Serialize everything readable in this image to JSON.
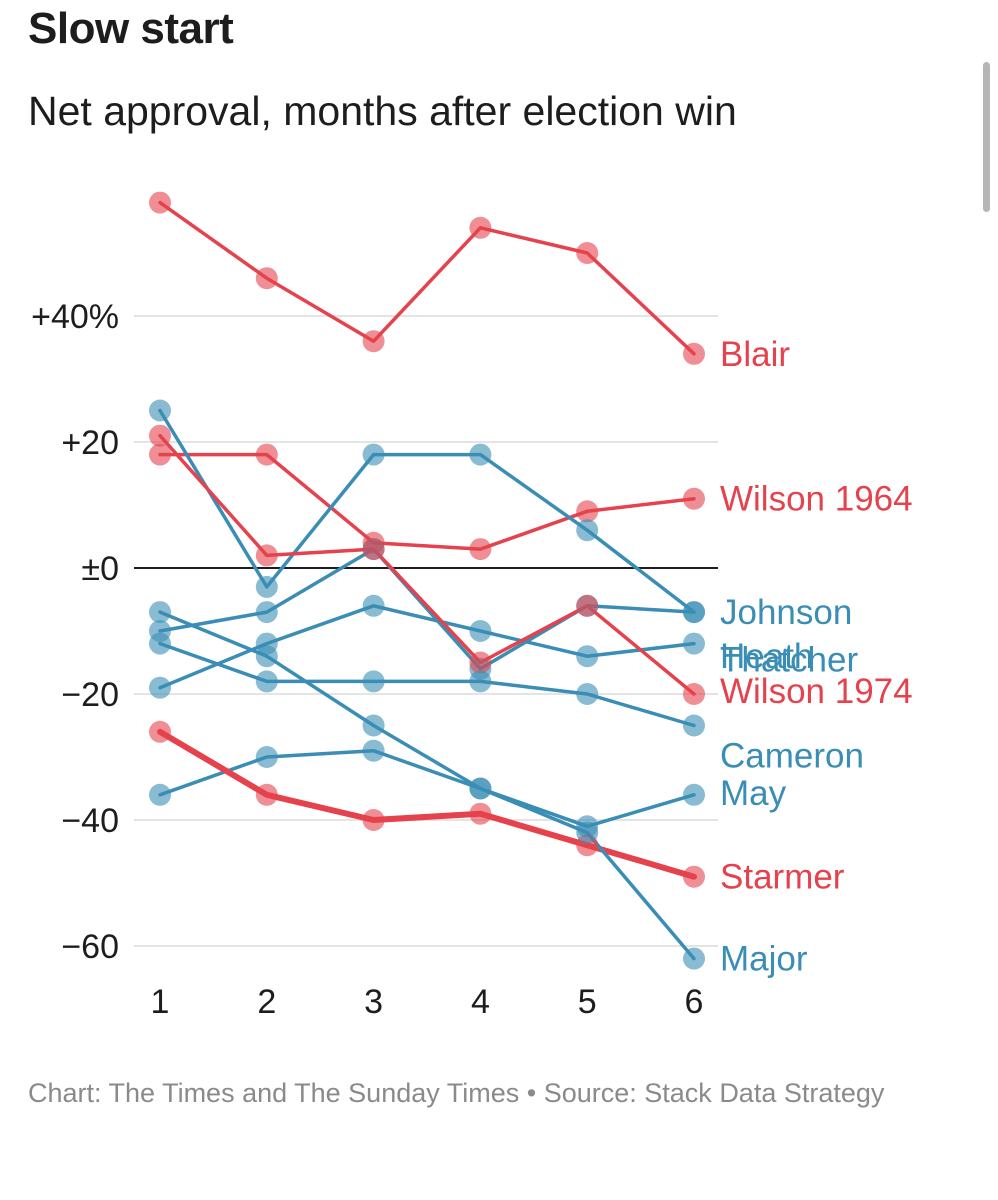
{
  "title": "Slow start",
  "subtitle": "Net approval, months after election win",
  "footer": {
    "credit": "Chart: The Times and The Sunday Times",
    "separator": "•",
    "source": "Source: Stack Data Strategy"
  },
  "colors": {
    "labour": "#e5424d",
    "conservative": "#3a8db5",
    "grid": "#e4e4e4",
    "zero_line": "#1d1d1d",
    "tick_text": "#1d1d1d"
  },
  "chart_data": {
    "type": "line",
    "title": "Slow start",
    "subtitle": "Net approval, months after election win",
    "xlabel": "",
    "ylabel": "",
    "x": [
      1,
      2,
      3,
      4,
      5,
      6
    ],
    "xlim": [
      1,
      6
    ],
    "ylim": [
      -67,
      58
    ],
    "y_ticks": [
      {
        "value": 40,
        "label": "+40%"
      },
      {
        "value": 20,
        "label": "+20"
      },
      {
        "value": 0,
        "label": "±0"
      },
      {
        "value": -20,
        "label": "−20"
      },
      {
        "value": -40,
        "label": "−40"
      },
      {
        "value": -60,
        "label": "−60"
      }
    ],
    "x_tick_labels": [
      "1",
      "2",
      "3",
      "4",
      "5",
      "6"
    ],
    "grid": true,
    "legend": "direct labels at right end of each line",
    "series": [
      {
        "name": "Blair",
        "party": "labour",
        "values": [
          58,
          46,
          36,
          54,
          50,
          34
        ]
      },
      {
        "name": "Wilson 1964",
        "party": "labour",
        "values": [
          18,
          18,
          4,
          3,
          9,
          11
        ]
      },
      {
        "name": "Heath",
        "party": "conservative",
        "values": [
          25,
          -3,
          18,
          18,
          6,
          -7
        ]
      },
      {
        "name": "Johnson",
        "party": "conservative",
        "values": [
          -10,
          -7,
          3,
          -16,
          -6,
          -7
        ]
      },
      {
        "name": "Thatcher",
        "party": "conservative",
        "values": [
          -19,
          -12,
          -6,
          -10,
          -14,
          -12
        ]
      },
      {
        "name": "Wilson 1974",
        "party": "labour",
        "values": [
          21,
          2,
          3,
          -15,
          -6,
          -20
        ]
      },
      {
        "name": "Cameron",
        "party": "conservative",
        "values": [
          -12,
          -18,
          -18,
          -18,
          -20,
          -25
        ]
      },
      {
        "name": "May",
        "party": "conservative",
        "values": [
          -36,
          -30,
          -29,
          -35,
          -41,
          -36
        ]
      },
      {
        "name": "Starmer",
        "party": "labour",
        "values": [
          -26,
          -36,
          -40,
          -39,
          -44,
          -49
        ],
        "highlight": true
      },
      {
        "name": "Major",
        "party": "conservative",
        "values": [
          -7,
          -14,
          -25,
          -35,
          -42,
          -62
        ]
      }
    ]
  }
}
